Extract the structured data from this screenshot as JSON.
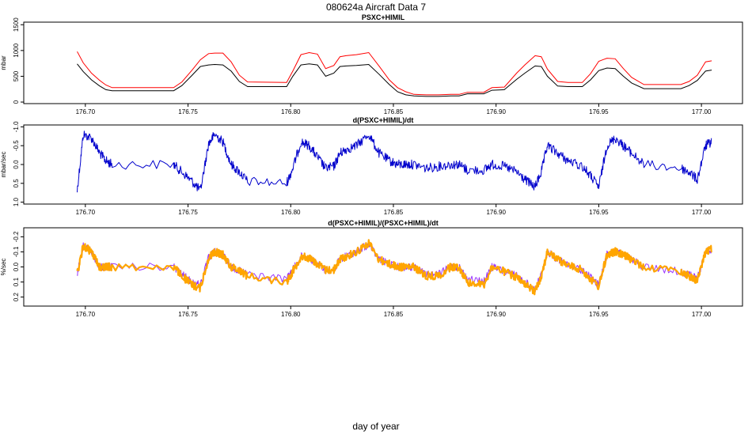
{
  "figure": {
    "title": "080624a   Aircraft Data 7",
    "xlabel": "day of year"
  },
  "chart_data": [
    {
      "type": "line",
      "title": "PSXC+HIMIL",
      "ylabel": "mbar",
      "xlim": [
        176.67,
        177.02
      ],
      "ylim": [
        -30,
        1550
      ],
      "x_ticks": [
        "176.70",
        "176.75",
        "176.80",
        "176.85",
        "176.90",
        "176.95",
        "177.00"
      ],
      "y_ticks": [
        "0",
        "500",
        "1000",
        "1500"
      ],
      "y_tick_values": [
        0,
        500,
        1000,
        1500
      ],
      "series": [
        {
          "color": "#ff0000",
          "x": [
            176.696,
            176.699,
            176.703,
            176.707,
            176.71,
            176.713,
            176.743,
            176.747,
            176.752,
            176.756,
            176.76,
            176.763,
            176.767,
            176.771,
            176.775,
            176.779,
            176.798,
            176.801,
            176.805,
            176.809,
            176.813,
            176.817,
            176.821,
            176.824,
            176.827,
            176.832,
            176.838,
            176.843,
            176.848,
            176.852,
            176.856,
            176.86,
            176.866,
            176.872,
            176.878,
            176.882,
            176.886,
            176.894,
            176.898,
            176.904,
            176.91,
            176.914,
            176.919,
            176.922,
            176.925,
            176.93,
            176.935,
            176.942,
            176.946,
            176.95,
            176.954,
            176.958,
            176.962,
            176.966,
            176.972,
            176.99,
            176.994,
            176.998,
            177.002,
            177.005
          ],
          "y": [
            980,
            760,
            560,
            420,
            330,
            280,
            280,
            390,
            620,
            820,
            940,
            950,
            950,
            780,
            520,
            390,
            380,
            600,
            920,
            960,
            930,
            650,
            710,
            880,
            900,
            920,
            960,
            700,
            430,
            280,
            200,
            150,
            140,
            140,
            150,
            150,
            190,
            190,
            280,
            290,
            560,
            720,
            900,
            880,
            640,
            400,
            380,
            380,
            550,
            790,
            850,
            840,
            650,
            480,
            340,
            340,
            400,
            520,
            780,
            800
          ]
        },
        {
          "color": "#000000",
          "x": [
            176.696,
            176.699,
            176.703,
            176.707,
            176.71,
            176.713,
            176.743,
            176.747,
            176.752,
            176.756,
            176.76,
            176.763,
            176.767,
            176.771,
            176.775,
            176.779,
            176.798,
            176.801,
            176.805,
            176.809,
            176.813,
            176.817,
            176.821,
            176.824,
            176.827,
            176.832,
            176.838,
            176.843,
            176.848,
            176.852,
            176.856,
            176.86,
            176.866,
            176.872,
            176.878,
            176.882,
            176.886,
            176.894,
            176.898,
            176.904,
            176.91,
            176.914,
            176.919,
            176.922,
            176.925,
            176.93,
            176.935,
            176.942,
            176.946,
            176.95,
            176.954,
            176.958,
            176.962,
            176.966,
            176.972,
            176.99,
            176.994,
            176.998,
            177.002,
            177.005
          ],
          "y": [
            740,
            590,
            430,
            310,
            240,
            220,
            220,
            320,
            520,
            690,
            720,
            730,
            720,
            600,
            400,
            300,
            300,
            500,
            720,
            740,
            720,
            500,
            560,
            690,
            700,
            710,
            730,
            540,
            340,
            200,
            140,
            120,
            110,
            110,
            120,
            120,
            160,
            160,
            230,
            240,
            440,
            560,
            700,
            690,
            500,
            310,
            300,
            300,
            430,
            610,
            660,
            650,
            500,
            370,
            260,
            260,
            320,
            420,
            600,
            620
          ]
        }
      ]
    },
    {
      "type": "line",
      "title": "d(PSXC+HIMIL)/dt",
      "ylabel": "mbar/sec",
      "xlim": [
        176.67,
        177.02
      ],
      "ylim": [
        1.05,
        -1.05
      ],
      "x_ticks": [
        "176.70",
        "176.75",
        "176.80",
        "176.85",
        "176.90",
        "176.95",
        "177.00"
      ],
      "y_ticks": [
        "-1.0",
        "-0.5",
        "0.0",
        "0.5",
        "1.0"
      ],
      "y_tick_values": [
        -1.0,
        -0.5,
        0.0,
        0.5,
        1.0
      ],
      "series": [
        {
          "color": "#0000cc",
          "x": [
            176.696,
            176.699,
            176.703,
            176.707,
            176.71,
            176.713,
            176.743,
            176.747,
            176.752,
            176.756,
            176.76,
            176.763,
            176.767,
            176.771,
            176.775,
            176.779,
            176.798,
            176.801,
            176.805,
            176.809,
            176.813,
            176.817,
            176.821,
            176.824,
            176.827,
            176.832,
            176.838,
            176.843,
            176.848,
            176.852,
            176.856,
            176.86,
            176.866,
            176.872,
            176.878,
            176.882,
            176.886,
            176.894,
            176.898,
            176.904,
            176.91,
            176.914,
            176.919,
            176.922,
            176.925,
            176.93,
            176.935,
            176.942,
            176.946,
            176.95,
            176.954,
            176.958,
            176.962,
            176.966,
            176.972,
            176.99,
            176.994,
            176.998,
            177.002,
            177.005
          ],
          "y": [
            0.7,
            -0.8,
            -0.7,
            -0.3,
            -0.1,
            0.0,
            0.0,
            0.2,
            0.45,
            0.7,
            -0.55,
            -0.8,
            -0.6,
            0.0,
            0.2,
            0.45,
            0.5,
            0.1,
            -0.6,
            -0.5,
            -0.2,
            0.1,
            0.05,
            -0.3,
            -0.4,
            -0.5,
            -0.8,
            -0.3,
            -0.1,
            0.0,
            0.0,
            0.0,
            0.1,
            0.05,
            0.0,
            0.0,
            0.15,
            0.15,
            0.0,
            0.05,
            0.2,
            0.4,
            0.6,
            0.2,
            -0.5,
            -0.3,
            -0.1,
            0.05,
            0.3,
            0.6,
            -0.5,
            -0.7,
            -0.5,
            -0.3,
            0.0,
            0.1,
            0.2,
            0.4,
            -0.5,
            -0.6
          ]
        }
      ]
    },
    {
      "type": "line",
      "title": "d(PSXC+HIMIL)/(PSXC+HIMIL)/dt",
      "ylabel": "%/sec",
      "xlim": [
        176.67,
        177.02
      ],
      "ylim": [
        0.26,
        -0.26
      ],
      "x_ticks": [
        "176.70",
        "176.75",
        "176.80",
        "176.85",
        "176.90",
        "176.95",
        "177.00"
      ],
      "y_ticks": [
        "-0.2",
        "-0.1",
        "0.0",
        "0.1",
        "0.2"
      ],
      "y_tick_values": [
        -0.2,
        -0.1,
        0.0,
        0.1,
        0.2
      ],
      "series": [
        {
          "color": "#9933ff",
          "x": [
            176.696,
            176.699,
            176.703,
            176.707,
            176.71,
            176.713,
            176.743,
            176.747,
            176.752,
            176.756,
            176.76,
            176.763,
            176.767,
            176.771,
            176.775,
            176.779,
            176.798,
            176.801,
            176.805,
            176.809,
            176.813,
            176.817,
            176.821,
            176.824,
            176.827,
            176.832,
            176.838,
            176.843,
            176.848,
            176.852,
            176.856,
            176.86,
            176.866,
            176.872,
            176.878,
            176.882,
            176.886,
            176.894,
            176.898,
            176.904,
            176.91,
            176.914,
            176.919,
            176.922,
            176.925,
            176.93,
            176.935,
            176.942,
            176.946,
            176.95,
            176.954,
            176.958,
            176.962,
            176.966,
            176.972,
            176.99,
            176.994,
            176.998,
            177.002,
            177.005
          ],
          "y": [
            0.05,
            -0.15,
            -0.1,
            0.0,
            0.0,
            0.0,
            0.0,
            0.05,
            0.1,
            0.12,
            -0.06,
            -0.1,
            -0.08,
            0.0,
            0.02,
            0.05,
            0.08,
            0.02,
            -0.07,
            -0.06,
            -0.02,
            0.02,
            0.02,
            -0.05,
            -0.07,
            -0.1,
            -0.15,
            -0.05,
            -0.02,
            0.0,
            0.0,
            0.0,
            0.05,
            0.05,
            0.0,
            0.0,
            0.08,
            0.1,
            0.0,
            0.03,
            0.06,
            0.1,
            0.15,
            0.05,
            -0.1,
            -0.05,
            -0.01,
            0.02,
            0.07,
            0.12,
            -0.08,
            -0.1,
            -0.08,
            -0.05,
            0.0,
            0.03,
            0.05,
            0.08,
            -0.1,
            -0.12
          ]
        },
        {
          "color": "#ffa500",
          "x": [
            176.696,
            176.699,
            176.703,
            176.707,
            176.71,
            176.713,
            176.743,
            176.747,
            176.752,
            176.756,
            176.76,
            176.763,
            176.767,
            176.771,
            176.775,
            176.779,
            176.798,
            176.801,
            176.805,
            176.809,
            176.813,
            176.817,
            176.821,
            176.824,
            176.827,
            176.832,
            176.838,
            176.843,
            176.848,
            176.852,
            176.856,
            176.86,
            176.866,
            176.872,
            176.878,
            176.882,
            176.886,
            176.894,
            176.898,
            176.904,
            176.91,
            176.914,
            176.919,
            176.922,
            176.925,
            176.93,
            176.935,
            176.942,
            176.946,
            176.95,
            176.954,
            176.958,
            176.962,
            176.966,
            176.972,
            176.99,
            176.994,
            176.998,
            177.002,
            177.005
          ],
          "y": [
            0.05,
            -0.14,
            -0.1,
            0.0,
            0.0,
            0.0,
            0.0,
            0.06,
            0.12,
            0.14,
            -0.06,
            -0.1,
            -0.08,
            0.0,
            0.02,
            0.06,
            0.1,
            0.03,
            -0.07,
            -0.06,
            -0.02,
            0.02,
            0.02,
            -0.05,
            -0.07,
            -0.1,
            -0.16,
            -0.05,
            -0.02,
            0.0,
            0.0,
            0.0,
            0.06,
            0.06,
            0.0,
            0.0,
            0.1,
            0.12,
            0.0,
            0.03,
            0.07,
            0.12,
            0.16,
            0.06,
            -0.1,
            -0.05,
            -0.01,
            0.02,
            0.08,
            0.13,
            -0.08,
            -0.1,
            -0.08,
            -0.05,
            0.0,
            0.03,
            0.06,
            0.09,
            -0.1,
            -0.12
          ]
        }
      ]
    }
  ]
}
